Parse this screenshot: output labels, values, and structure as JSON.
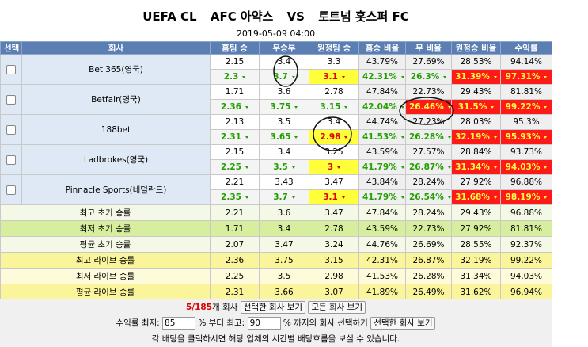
{
  "header": {
    "league": "UEFA CL",
    "home": "AFC 아약스",
    "vs": "VS",
    "away": "토트넘 홋스퍼 FC",
    "datetime": "2019-05-09 04:00"
  },
  "table": {
    "columns": [
      "선택",
      "회사",
      "홈팀 승",
      "무승부",
      "원정팀 승",
      "홈승 비율",
      "무 비율",
      "원정승 비율",
      "수익률"
    ],
    "companies": [
      {
        "name": "Bet 365(영국)",
        "initial": [
          "2.15",
          "3.4",
          "3.3",
          "43.79%",
          "27.69%",
          "28.53%",
          "94.14%"
        ],
        "live": [
          {
            "text": "2.3",
            "style": "green"
          },
          {
            "text": "3.7",
            "style": "green"
          },
          {
            "text": "3.1",
            "style": "yellow"
          },
          {
            "text": "42.31%",
            "style": "green"
          },
          {
            "text": "26.3%",
            "style": "green"
          },
          {
            "text": "31.39%",
            "style": "red"
          },
          {
            "text": "97.31%",
            "style": "red"
          }
        ]
      },
      {
        "name": "Betfair(영국)",
        "initial": [
          "1.71",
          "3.6",
          "2.78",
          "47.84%",
          "22.73%",
          "29.43%",
          "81.81%"
        ],
        "live": [
          {
            "text": "2.36",
            "style": "green"
          },
          {
            "text": "3.75",
            "style": "green"
          },
          {
            "text": "3.15",
            "style": "green"
          },
          {
            "text": "42.04%",
            "style": "green"
          },
          {
            "text": "26.46%",
            "style": "red"
          },
          {
            "text": "31.5%",
            "style": "red"
          },
          {
            "text": "99.22%",
            "style": "red"
          }
        ]
      },
      {
        "name": "188bet",
        "initial": [
          "2.13",
          "3.5",
          "3.4",
          "44.74%",
          "27.23%",
          "28.03%",
          "95.3%"
        ],
        "live": [
          {
            "text": "2.31",
            "style": "green"
          },
          {
            "text": "3.65",
            "style": "green"
          },
          {
            "text": "2.98",
            "style": "yellow"
          },
          {
            "text": "41.53%",
            "style": "green"
          },
          {
            "text": "26.28%",
            "style": "green"
          },
          {
            "text": "32.19%",
            "style": "red"
          },
          {
            "text": "95.93%",
            "style": "red"
          }
        ]
      },
      {
        "name": "Ladbrokes(영국)",
        "initial": [
          "2.15",
          "3.4",
          "3.25",
          "43.59%",
          "27.57%",
          "28.84%",
          "93.73%"
        ],
        "live": [
          {
            "text": "2.25",
            "style": "green"
          },
          {
            "text": "3.5",
            "style": "green"
          },
          {
            "text": "3",
            "style": "yellow"
          },
          {
            "text": "41.79%",
            "style": "green"
          },
          {
            "text": "26.87%",
            "style": "green"
          },
          {
            "text": "31.34%",
            "style": "red"
          },
          {
            "text": "94.03%",
            "style": "red"
          }
        ]
      },
      {
        "name": "Pinnacle Sports(네덜란드)",
        "initial": [
          "2.21",
          "3.43",
          "3.47",
          "43.84%",
          "28.24%",
          "27.92%",
          "96.88%"
        ],
        "live": [
          {
            "text": "2.35",
            "style": "green"
          },
          {
            "text": "3.7",
            "style": "green"
          },
          {
            "text": "3.1",
            "style": "yellow"
          },
          {
            "text": "41.79%",
            "style": "green"
          },
          {
            "text": "26.54%",
            "style": "green"
          },
          {
            "text": "31.68%",
            "style": "red"
          },
          {
            "text": "98.19%",
            "style": "red"
          }
        ]
      }
    ],
    "summary": [
      {
        "label": "최고 초기 승률",
        "color": "#f3f9e6",
        "values": [
          "2.21",
          "3.6",
          "3.47",
          "47.84%",
          "28.24%",
          "29.43%",
          "96.88%"
        ]
      },
      {
        "label": "최저 초기 승률",
        "color": "#d6ee9e",
        "values": [
          "1.71",
          "3.4",
          "2.78",
          "43.59%",
          "22.73%",
          "27.92%",
          "81.81%"
        ]
      },
      {
        "label": "평균 초기 승률",
        "color": "#f3f9e6",
        "values": [
          "2.07",
          "3.47",
          "3.24",
          "44.76%",
          "26.69%",
          "28.55%",
          "92.37%"
        ]
      },
      {
        "label": "최고 라이브 승률",
        "color": "#faf49a",
        "values": [
          "2.36",
          "3.75",
          "3.15",
          "42.31%",
          "26.87%",
          "32.19%",
          "99.22%"
        ]
      },
      {
        "label": "최저 라이브 승률",
        "color": "#fdfbd9",
        "values": [
          "2.25",
          "3.5",
          "2.98",
          "41.53%",
          "26.28%",
          "31.34%",
          "94.03%"
        ]
      },
      {
        "label": "평균 라이브 승률",
        "color": "#faf49a",
        "values": [
          "2.31",
          "3.66",
          "3.07",
          "41.89%",
          "26.49%",
          "31.62%",
          "96.94%"
        ]
      }
    ]
  },
  "footer": {
    "count": "5/185",
    "count_unit": "개 회사",
    "btn_selected": "선택한 회사 보기",
    "btn_all": "모든 회사 보기",
    "rate_label": "수익률 최저:",
    "rate_min": "85",
    "rate_mid": "% 부터 최고:",
    "rate_max": "90",
    "rate_end": "% 까지의 회사 선택하기",
    "btn_selected2": "선택한 회사 보기",
    "note": "각 배당을 클릭하시면 해당 업체의 시간별 배당흐름을 보실 수 있습니다."
  }
}
